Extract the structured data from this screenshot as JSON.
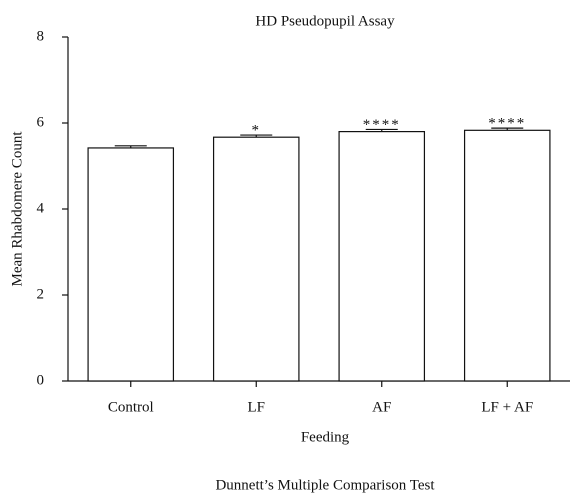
{
  "chart_data": {
    "type": "bar",
    "title": "HD Pseudopupil Assay",
    "x_label": "Feeding",
    "y_label": "Mean Rhabdomere Count",
    "footer": "Dunnett’s Multiple Comparison Test",
    "categories": [
      "Control",
      "LF",
      "AF",
      "LF + AF"
    ],
    "values": [
      5.42,
      5.67,
      5.8,
      5.83
    ],
    "errors": [
      0.05,
      0.05,
      0.05,
      0.05
    ],
    "annotations": [
      null,
      "*",
      "****",
      "****"
    ],
    "color": "#ffffff",
    "ylim": [
      0,
      8
    ],
    "yticks": [
      0,
      2,
      4,
      6,
      8
    ],
    "grid": false
  }
}
